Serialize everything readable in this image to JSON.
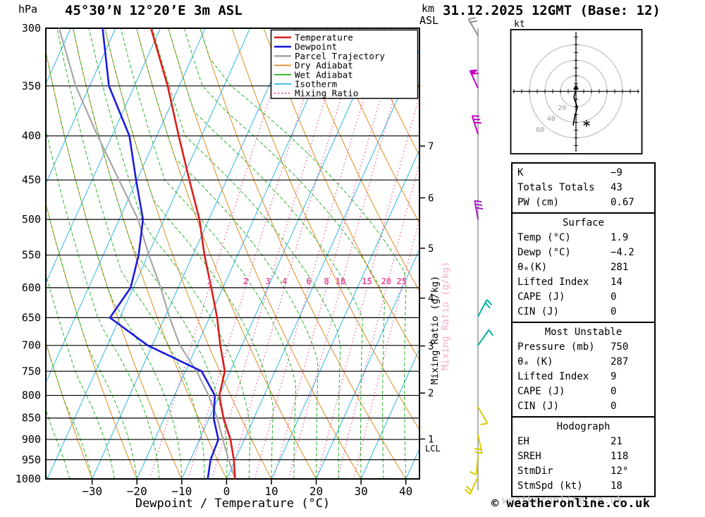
{
  "header": {
    "left_units": "hPa",
    "station_title": "45°30’N 12°20’E 3m ASL",
    "right_units_km": "km",
    "right_units_asl": "ASL",
    "datetime_title": "31.12.2025 12GMT (Base: 12)"
  },
  "axes": {
    "pressure_ticks": [
      300,
      350,
      400,
      450,
      500,
      550,
      600,
      650,
      700,
      750,
      800,
      850,
      900,
      950,
      1000
    ],
    "temp_ticks": [
      -30,
      -20,
      -10,
      0,
      10,
      20,
      30,
      40
    ],
    "km_ticks": [
      7,
      6,
      5,
      4,
      3,
      2,
      1
    ],
    "xlabel": "Dewpoint / Temperature (°C)",
    "mixing_ratio_axis_label": "Mixing Ratio (g/kg)",
    "lcl_label": "LCL"
  },
  "legend": {
    "items": [
      {
        "label": "Temperature",
        "color": "#dd1c1c",
        "style": "solid"
      },
      {
        "label": "Dewpoint",
        "color": "#1c1cdd",
        "style": "solid"
      },
      {
        "label": "Parcel Trajectory",
        "color": "#a6a6a6",
        "style": "solid"
      },
      {
        "label": "Dry Adiabat",
        "color": "#e08a20",
        "style": "solid"
      },
      {
        "label": "Wet Adiabat",
        "color": "#2ab42a",
        "style": "solid"
      },
      {
        "label": "Isotherm",
        "color": "#30b4e6",
        "style": "solid"
      },
      {
        "label": "Mixing Ratio",
        "color": "#f0509b",
        "style": "dotted"
      }
    ]
  },
  "chart_data": {
    "type": "line",
    "variant": "skew-t-log-p",
    "title": "45°30’N 12°20’E 3m ASL",
    "xlabel": "Dewpoint / Temperature (°C)",
    "ylabel": "hPa",
    "x_range_degC": [
      -40,
      45
    ],
    "pressure_range_hPa": [
      300,
      1000
    ],
    "series": [
      {
        "name": "Temperature",
        "color": "#dd1c1c",
        "points": [
          [
            1000,
            1.9
          ],
          [
            950,
            -0.3
          ],
          [
            900,
            -3.1
          ],
          [
            850,
            -6.8
          ],
          [
            800,
            -10.0
          ],
          [
            750,
            -11.2
          ],
          [
            700,
            -14.8
          ],
          [
            650,
            -18.3
          ],
          [
            600,
            -22.6
          ],
          [
            550,
            -27.4
          ],
          [
            500,
            -32.1
          ],
          [
            450,
            -38.3
          ],
          [
            400,
            -45.1
          ],
          [
            350,
            -52.6
          ],
          [
            300,
            -62.1
          ]
        ]
      },
      {
        "name": "Dewpoint",
        "color": "#1c1cdd",
        "points": [
          [
            1000,
            -4.2
          ],
          [
            950,
            -5.5
          ],
          [
            900,
            -5.8
          ],
          [
            850,
            -9.0
          ],
          [
            800,
            -11.0
          ],
          [
            750,
            -16.4
          ],
          [
            700,
            -31.0
          ],
          [
            650,
            -42.2
          ],
          [
            600,
            -40.6
          ],
          [
            550,
            -42.1
          ],
          [
            500,
            -44.7
          ],
          [
            450,
            -50.2
          ],
          [
            400,
            -56.1
          ],
          [
            350,
            -65.7
          ],
          [
            300,
            -72.9
          ]
        ]
      },
      {
        "name": "Parcel Trajectory",
        "color": "#a6a6a6",
        "points": [
          [
            1000,
            1.9
          ],
          [
            950,
            -1.5
          ],
          [
            900,
            -4.8
          ],
          [
            850,
            -8.2
          ],
          [
            800,
            -12.4
          ],
          [
            750,
            -17.5
          ],
          [
            700,
            -23.8
          ],
          [
            650,
            -28.9
          ],
          [
            600,
            -33.9
          ],
          [
            550,
            -39.8
          ],
          [
            500,
            -45.8
          ],
          [
            450,
            -54.0
          ],
          [
            400,
            -63.2
          ],
          [
            350,
            -73.1
          ],
          [
            300,
            -82.6
          ]
        ]
      }
    ],
    "mixing_ratio_lines": [
      1,
      2,
      3,
      4,
      6,
      8,
      10,
      15,
      20,
      25
    ],
    "wind_barbs": [
      {
        "pressure": 306,
        "color": "#909090",
        "angle": -30,
        "ticks": 2,
        "flag": false
      },
      {
        "pressure": 352,
        "color": "#c400c4",
        "angle": -25,
        "ticks": 2,
        "flag": true
      },
      {
        "pressure": 398,
        "color": "#c400c4",
        "angle": -18,
        "ticks": 3,
        "flag": false
      },
      {
        "pressure": 500,
        "color": "#a020c0",
        "angle": -10,
        "ticks": 3,
        "flag": false
      },
      {
        "pressure": 648,
        "color": "#00b4a0",
        "angle": 28,
        "ticks": 2,
        "flag": false
      },
      {
        "pressure": 700,
        "color": "#00b4a0",
        "angle": 35,
        "ticks": 1,
        "flag": false
      },
      {
        "pressure": 825,
        "color": "#d8cc00",
        "angle": 150,
        "ticks": 1,
        "flag": false
      },
      {
        "pressure": 888,
        "color": "#d8cc00",
        "angle": 168,
        "ticks": 2,
        "flag": false
      },
      {
        "pressure": 940,
        "color": "#d8cc00",
        "angle": 185,
        "ticks": 1,
        "flag": false
      },
      {
        "pressure": 995,
        "color": "#d8cc00",
        "angle": 205,
        "ticks": 2,
        "flag": false
      }
    ]
  },
  "hodograph": {
    "unit_label": "kt",
    "ring_labels": [
      20,
      40,
      60
    ],
    "trace_points": [
      [
        94,
        100
      ],
      [
        91,
        112
      ],
      [
        96,
        126
      ],
      [
        92,
        140
      ],
      [
        90,
        152
      ]
    ],
    "star_point": [
      109,
      149
    ]
  },
  "table": {
    "sections": [
      {
        "header": null,
        "rows": [
          [
            "K",
            "−9"
          ],
          [
            "Totals Totals",
            "43"
          ],
          [
            "PW (cm)",
            "0.67"
          ]
        ]
      },
      {
        "header": "Surface",
        "rows": [
          [
            "Temp (°C)",
            "1.9"
          ],
          [
            "Dewp (°C)",
            "−4.2"
          ],
          [
            "θₑ(K)",
            "281"
          ],
          [
            "Lifted Index",
            "14"
          ],
          [
            "CAPE (J)",
            "0"
          ],
          [
            "CIN (J)",
            "0"
          ]
        ]
      },
      {
        "header": "Most Unstable",
        "rows": [
          [
            "Pressure (mb)",
            "750"
          ],
          [
            "θₑ (K)",
            "287"
          ],
          [
            "Lifted Index",
            "9"
          ],
          [
            "CAPE (J)",
            "0"
          ],
          [
            "CIN (J)",
            "0"
          ]
        ]
      },
      {
        "header": "Hodograph",
        "rows": [
          [
            "EH",
            "21"
          ],
          [
            "SREH",
            "118"
          ],
          [
            "StmDir",
            "12°"
          ],
          [
            "StmSpd (kt)",
            "18"
          ]
        ]
      }
    ]
  },
  "footer": {
    "copyright": "© weatheronline.co.uk",
    "watermark": "weatheronline.co.uk"
  },
  "colors": {
    "temperature": "#dd1c1c",
    "dewpoint": "#1c1cdd",
    "parcel": "#a6a6a6",
    "dry_adiabat": "#e08a20",
    "wet_adiabat": "#2ab42a",
    "isotherm": "#30b4e6",
    "mixing_ratio": "#f0509b",
    "grid": "#000000",
    "station_line": "#999999"
  }
}
